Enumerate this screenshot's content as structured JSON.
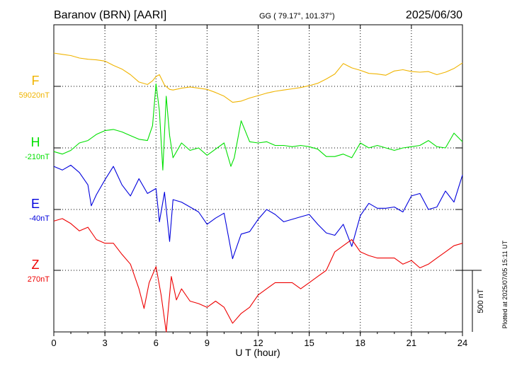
{
  "header": {
    "station": "Baranov (BRN)  [AARI]",
    "coords": "GG ( 79.17°, 101.37°)",
    "date": "2025/06/30"
  },
  "footer_note": "Plotted at 2025/07/05 15:11 UT",
  "colors": {
    "F": "#f0b400",
    "H": "#00e000",
    "E": "#0000dd",
    "Z": "#ee0000",
    "grid": "#000000"
  },
  "chart_data": {
    "type": "line",
    "xlabel": "U T (hour)",
    "xlim": [
      0,
      24
    ],
    "x_ticks": [
      "0",
      "3",
      "6",
      "9",
      "12",
      "15",
      "18",
      "21",
      "24"
    ],
    "scale_bar_label": "500 nT",
    "scale_bar_nT": 500,
    "series": [
      {
        "name": "F",
        "baseline_label": "59020nT",
        "baseline_nT": 59020,
        "x": [
          0,
          0.5,
          1,
          1.5,
          2,
          2.5,
          3,
          3.5,
          4,
          4.5,
          5,
          5.5,
          5.8,
          6,
          6.2,
          6.5,
          6.8,
          7,
          7.5,
          8,
          8.5,
          9,
          9.5,
          10,
          10.5,
          11,
          11.5,
          12,
          12.5,
          13,
          13.5,
          14,
          14.5,
          15,
          15.5,
          16,
          16.5,
          17,
          17.5,
          18,
          18.5,
          19,
          19.5,
          20,
          20.5,
          21,
          21.5,
          22,
          22.5,
          23,
          23.5,
          24
        ],
        "values": [
          270,
          260,
          250,
          230,
          220,
          215,
          205,
          170,
          140,
          95,
          35,
          15,
          45,
          80,
          95,
          10,
          -25,
          -30,
          -15,
          -5,
          -15,
          -25,
          -50,
          -80,
          -130,
          -120,
          -95,
          -75,
          -55,
          -40,
          -30,
          -20,
          -10,
          5,
          25,
          60,
          100,
          185,
          150,
          130,
          105,
          100,
          90,
          125,
          135,
          120,
          115,
          120,
          95,
          115,
          145,
          190
        ]
      },
      {
        "name": "H",
        "baseline_label": "-210nT",
        "baseline_nT": -210,
        "x": [
          0,
          0.5,
          1,
          1.5,
          2,
          2.5,
          3,
          3.5,
          4,
          4.5,
          5,
          5.5,
          5.8,
          6,
          6.2,
          6.4,
          6.6,
          6.8,
          7,
          7.5,
          8,
          8.5,
          9,
          9.5,
          10,
          10.4,
          10.6,
          11,
          11.5,
          12,
          12.5,
          13,
          13.5,
          14,
          14.5,
          15,
          15.5,
          16,
          16.5,
          17,
          17.5,
          18,
          18.5,
          19,
          19.5,
          20,
          20.5,
          21,
          21.5,
          22,
          22.5,
          23,
          23.5,
          24
        ],
        "values": [
          -30,
          -50,
          -20,
          40,
          60,
          110,
          140,
          150,
          130,
          100,
          70,
          60,
          180,
          520,
          300,
          -180,
          420,
          100,
          -80,
          40,
          -20,
          0,
          -60,
          -10,
          40,
          -150,
          -80,
          220,
          50,
          40,
          50,
          20,
          20,
          10,
          20,
          10,
          -10,
          -70,
          -70,
          -50,
          -80,
          40,
          0,
          20,
          0,
          -20,
          0,
          10,
          20,
          60,
          10,
          0,
          120,
          50
        ]
      },
      {
        "name": "E",
        "baseline_label": "-40nT",
        "baseline_nT": -40,
        "x": [
          0,
          0.5,
          1,
          1.5,
          2,
          2.2,
          2.5,
          3,
          3.5,
          4,
          4.5,
          5,
          5.5,
          6,
          6.2,
          6.5,
          6.8,
          7,
          7.5,
          8,
          8.5,
          9,
          9.5,
          10,
          10.5,
          11,
          11.5,
          12,
          12.5,
          13,
          13.5,
          14,
          14.5,
          15,
          15.5,
          16,
          16.5,
          17,
          17.5,
          18,
          18.5,
          19,
          19.5,
          20,
          20.5,
          21,
          21.5,
          22,
          22.5,
          23,
          23.5,
          24
        ],
        "values": [
          350,
          320,
          360,
          300,
          200,
          30,
          120,
          240,
          350,
          200,
          110,
          250,
          130,
          170,
          -100,
          140,
          -260,
          80,
          60,
          20,
          -20,
          -120,
          -70,
          -30,
          -400,
          -200,
          -180,
          -80,
          0,
          -40,
          -100,
          -80,
          -60,
          -40,
          -120,
          -190,
          -210,
          -120,
          -300,
          -50,
          50,
          10,
          10,
          20,
          -20,
          110,
          130,
          0,
          20,
          150,
          60,
          280
        ]
      },
      {
        "name": "Z",
        "baseline_label": "270nT",
        "baseline_nT": 270,
        "x": [
          0,
          0.5,
          1,
          1.5,
          2,
          2.5,
          3,
          3.5,
          4,
          4.5,
          5,
          5.3,
          5.6,
          6,
          6.3,
          6.6,
          6.9,
          7.2,
          7.5,
          8,
          8.5,
          9,
          9.5,
          10,
          10.5,
          11,
          11.5,
          12,
          12.5,
          13,
          13.5,
          14,
          14.5,
          15,
          15.5,
          16,
          16.5,
          17,
          17.5,
          18,
          18.5,
          19,
          19.5,
          20,
          20.5,
          21,
          21.5,
          22,
          22.5,
          23,
          23.5,
          24
        ],
        "values": [
          400,
          420,
          380,
          320,
          350,
          250,
          220,
          220,
          130,
          50,
          -150,
          -310,
          -100,
          30,
          -200,
          -500,
          -50,
          -240,
          -150,
          -250,
          -270,
          -300,
          -250,
          -300,
          -430,
          -350,
          -300,
          -200,
          -150,
          -100,
          -100,
          -100,
          -150,
          -100,
          -50,
          0,
          150,
          200,
          250,
          150,
          120,
          100,
          100,
          100,
          50,
          80,
          20,
          50,
          100,
          150,
          200,
          220
        ]
      }
    ]
  }
}
